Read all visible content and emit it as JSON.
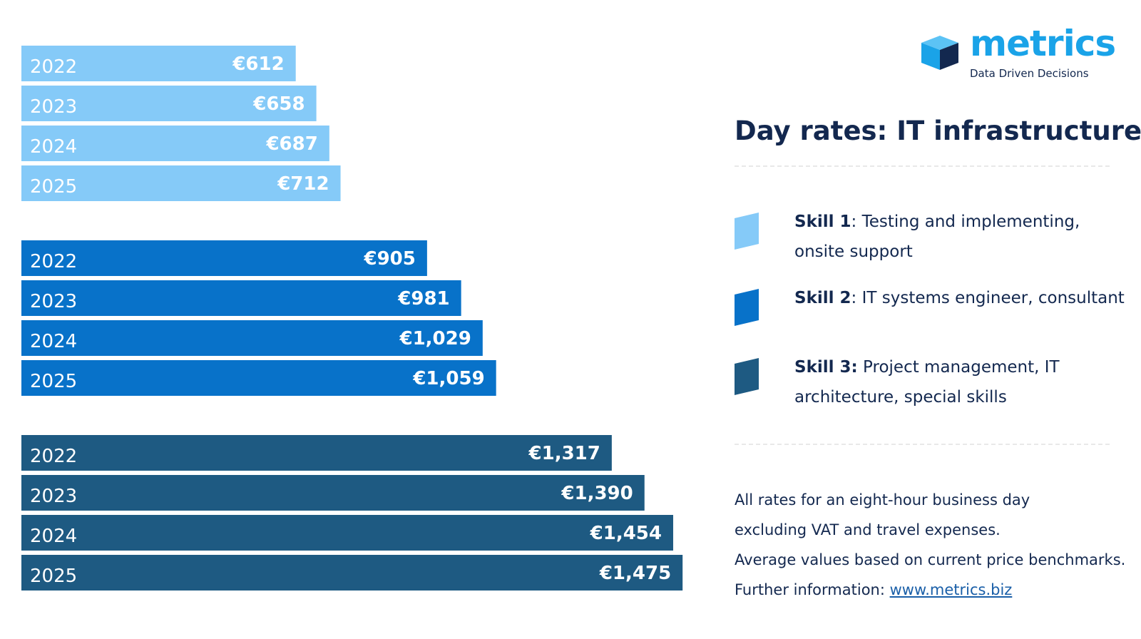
{
  "header": {
    "logo_word": "metrics",
    "logo_tagline": "Data Driven Decisions",
    "title": "Day rates: IT infrastructure"
  },
  "legend": [
    {
      "name": "Skill 1",
      "separator": ": ",
      "description": "Testing and implementing, onsite support",
      "color": "#85caf8"
    },
    {
      "name": "Skill 2",
      "separator": ": ",
      "description": "IT systems engineer, consultant",
      "color": "#0872c9"
    },
    {
      "name": "Skill 3:",
      "separator": " ",
      "description": "Project management, IT architecture, special skills",
      "color": "#1e5a82"
    }
  ],
  "notes": {
    "line1": "All rates for an eight-hour business day",
    "line2": "excluding VAT and travel expenses.",
    "line3": "Average values based on current price benchmarks.",
    "line4_prefix": "Further information: ",
    "link_text": "www.metrics.biz"
  },
  "chart_data": {
    "type": "bar",
    "orientation": "horizontal",
    "categories": [
      "2022",
      "2023",
      "2024",
      "2025"
    ],
    "series": [
      {
        "name": "Skill 1",
        "color": "#85caf8",
        "values": [
          612,
          658,
          687,
          712
        ],
        "labels": [
          "€612",
          "€658",
          "€687",
          "€712"
        ]
      },
      {
        "name": "Skill 2",
        "color": "#0872c9",
        "values": [
          905,
          981,
          1029,
          1059
        ],
        "labels": [
          "€905",
          "€981",
          "€1,029",
          "€1,059"
        ]
      },
      {
        "name": "Skill 3",
        "color": "#1e5a82",
        "values": [
          1317,
          1390,
          1454,
          1475
        ],
        "labels": [
          "€1,317",
          "€1,390",
          "€1,454",
          "€1,475"
        ]
      }
    ],
    "title": "Day rates: IT infrastructure",
    "grid": false
  }
}
